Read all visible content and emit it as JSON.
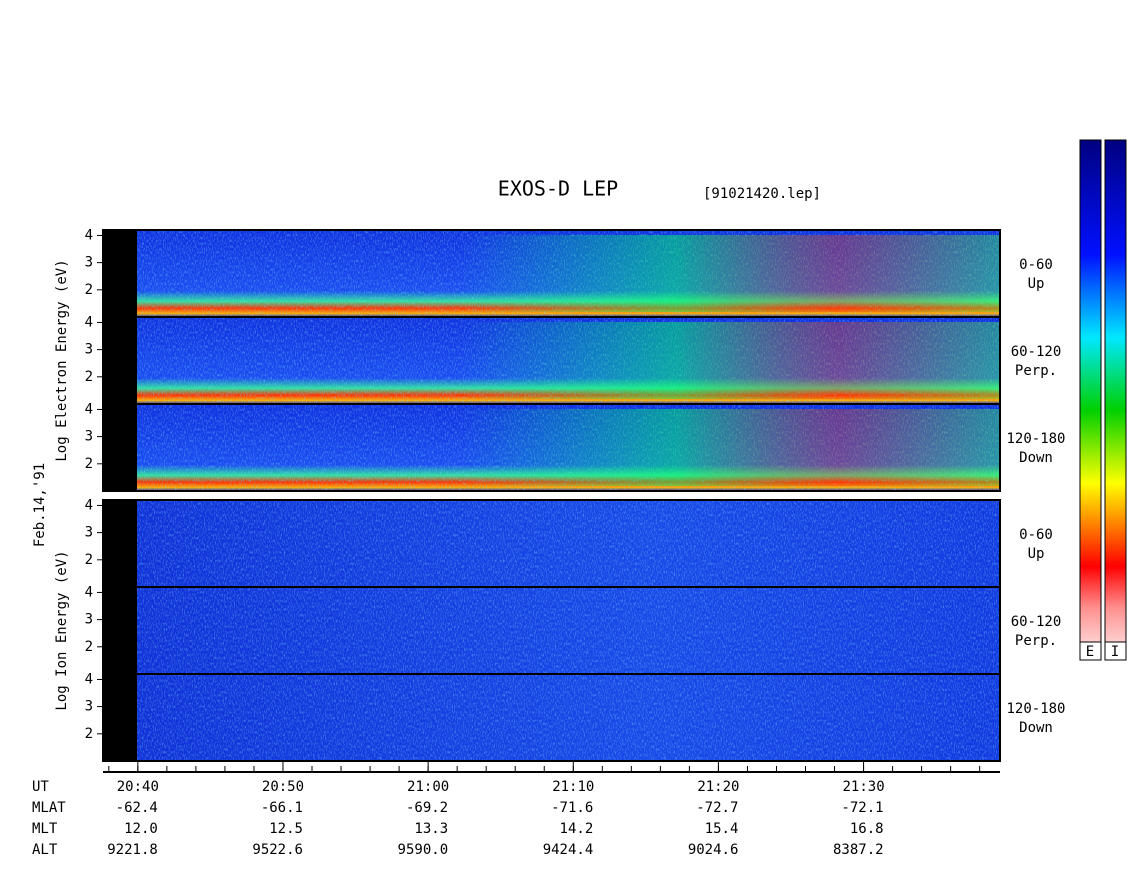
{
  "chart_data": {
    "type": "spectrogram",
    "title": "EXOS-D LEP",
    "subtitle": "[91021420.lep]",
    "date_label": "Feb.14,'91",
    "groups": [
      {
        "ylabel": "Log Electron Energy (eV)",
        "panels": [
          [
            "0-60",
            "Up"
          ],
          [
            "60-120",
            "Perp."
          ],
          [
            "120-180",
            "Down"
          ]
        ]
      },
      {
        "ylabel": "Log Ion Energy (eV)",
        "panels": [
          [
            "0-60",
            "Up"
          ],
          [
            "60-120",
            "Perp."
          ],
          [
            "120-180",
            "Down"
          ]
        ]
      }
    ],
    "ylim": [
      1,
      4.2
    ],
    "yticks": [
      2,
      3,
      4
    ],
    "xlim": [
      1237.6,
      1299.4
    ],
    "xticks": [
      {
        "value": 1240,
        "label": "20:40"
      },
      {
        "value": 1250,
        "label": "20:50"
      },
      {
        "value": 1260,
        "label": "21:00"
      },
      {
        "value": 1270,
        "label": "21:10"
      },
      {
        "value": 1280,
        "label": "21:20"
      },
      {
        "value": 1290,
        "label": "21:30"
      }
    ],
    "ephemeris": {
      "labels": [
        "UT",
        "MLAT",
        "MLT",
        "ALT"
      ],
      "rows": [
        [
          "-62.4",
          "-66.1",
          "-69.2",
          "-71.6",
          "-72.7",
          "-72.1"
        ],
        [
          "12.0",
          "12.5",
          "13.3",
          "14.2",
          "15.4",
          "16.8"
        ],
        [
          "9221.8",
          "9522.6",
          "9590.0",
          "9424.4",
          "9024.6",
          "8387.2"
        ]
      ]
    },
    "colorbar_labels": [
      "E",
      "I"
    ]
  }
}
